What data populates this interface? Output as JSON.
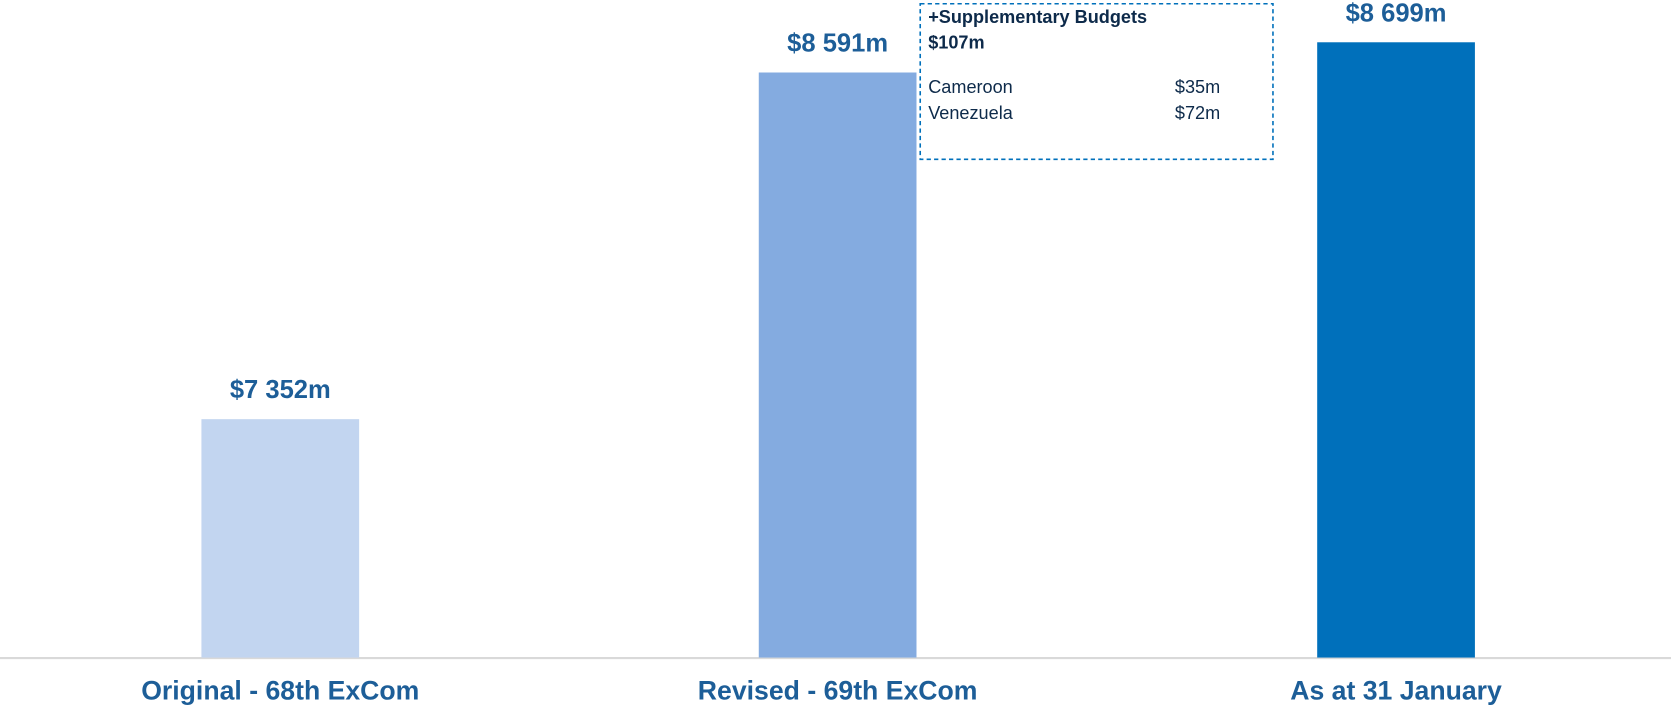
{
  "chart_data": {
    "type": "bar",
    "categories": [
      "Original  - 68th ExCom",
      "Revised - 69th ExCom",
      "As at 31 January"
    ],
    "values": [
      7352,
      8591,
      8699
    ],
    "value_labels": [
      "$7 352m",
      "$8 591m",
      "$8 699m"
    ],
    "colors": [
      "#c2d5f0",
      "#84abe0",
      "#0070bb"
    ],
    "ylim": [
      6500,
      8850
    ],
    "annotation": {
      "title": "+Supplementary Budgets",
      "total": "$107m",
      "items": [
        {
          "name": "Cameroon",
          "amount": "$35m"
        },
        {
          "name": "Venezuela",
          "amount": "$72m"
        }
      ]
    }
  }
}
